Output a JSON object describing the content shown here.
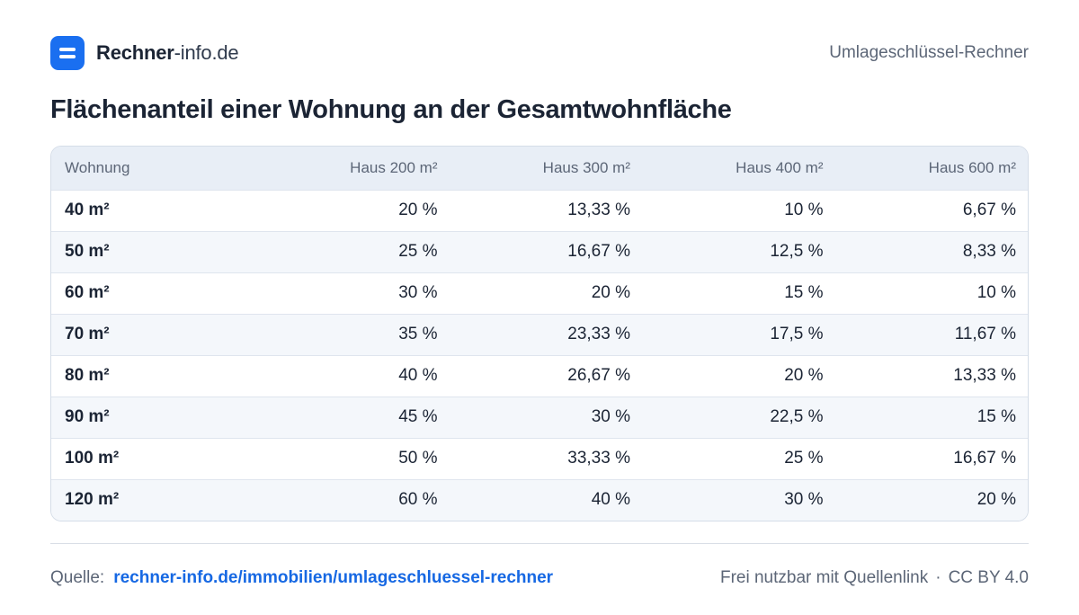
{
  "header": {
    "brand_strong": "Rechner",
    "brand_light": "-info.de",
    "right_label": "Umlageschlüssel-Rechner"
  },
  "title": "Flächenanteil einer Wohnung an der Gesamtwohnfläche",
  "chart_data": {
    "type": "table",
    "columns": [
      "Wohnung",
      "Haus 200 m²",
      "Haus 300 m²",
      "Haus 400 m²",
      "Haus 600 m²"
    ],
    "rows": [
      [
        "40 m²",
        "20 %",
        "13,33 %",
        "10 %",
        "6,67 %"
      ],
      [
        "50 m²",
        "25 %",
        "16,67 %",
        "12,5 %",
        "8,33 %"
      ],
      [
        "60 m²",
        "30 %",
        "20 %",
        "15 %",
        "10 %"
      ],
      [
        "70 m²",
        "35 %",
        "23,33 %",
        "17,5 %",
        "11,67 %"
      ],
      [
        "80 m²",
        "40 %",
        "26,67 %",
        "20 %",
        "13,33 %"
      ],
      [
        "90 m²",
        "45 %",
        "30 %",
        "22,5 %",
        "15 %"
      ],
      [
        "100 m²",
        "50 %",
        "33,33 %",
        "25 %",
        "16,67 %"
      ],
      [
        "120 m²",
        "60 %",
        "40 %",
        "30 %",
        "20 %"
      ]
    ]
  },
  "footer": {
    "source_label": "Quelle:",
    "source_link": "rechner-info.de/immobilien/umlageschluessel-rechner",
    "license_text": "Frei nutzbar mit Quellenlink",
    "separator": "·",
    "license_name": "CC BY 4.0"
  },
  "colors": {
    "brand": "#1a6ff0",
    "link": "#1668e3",
    "header_row": "#e8eef6",
    "stripe": "#f4f7fb"
  }
}
